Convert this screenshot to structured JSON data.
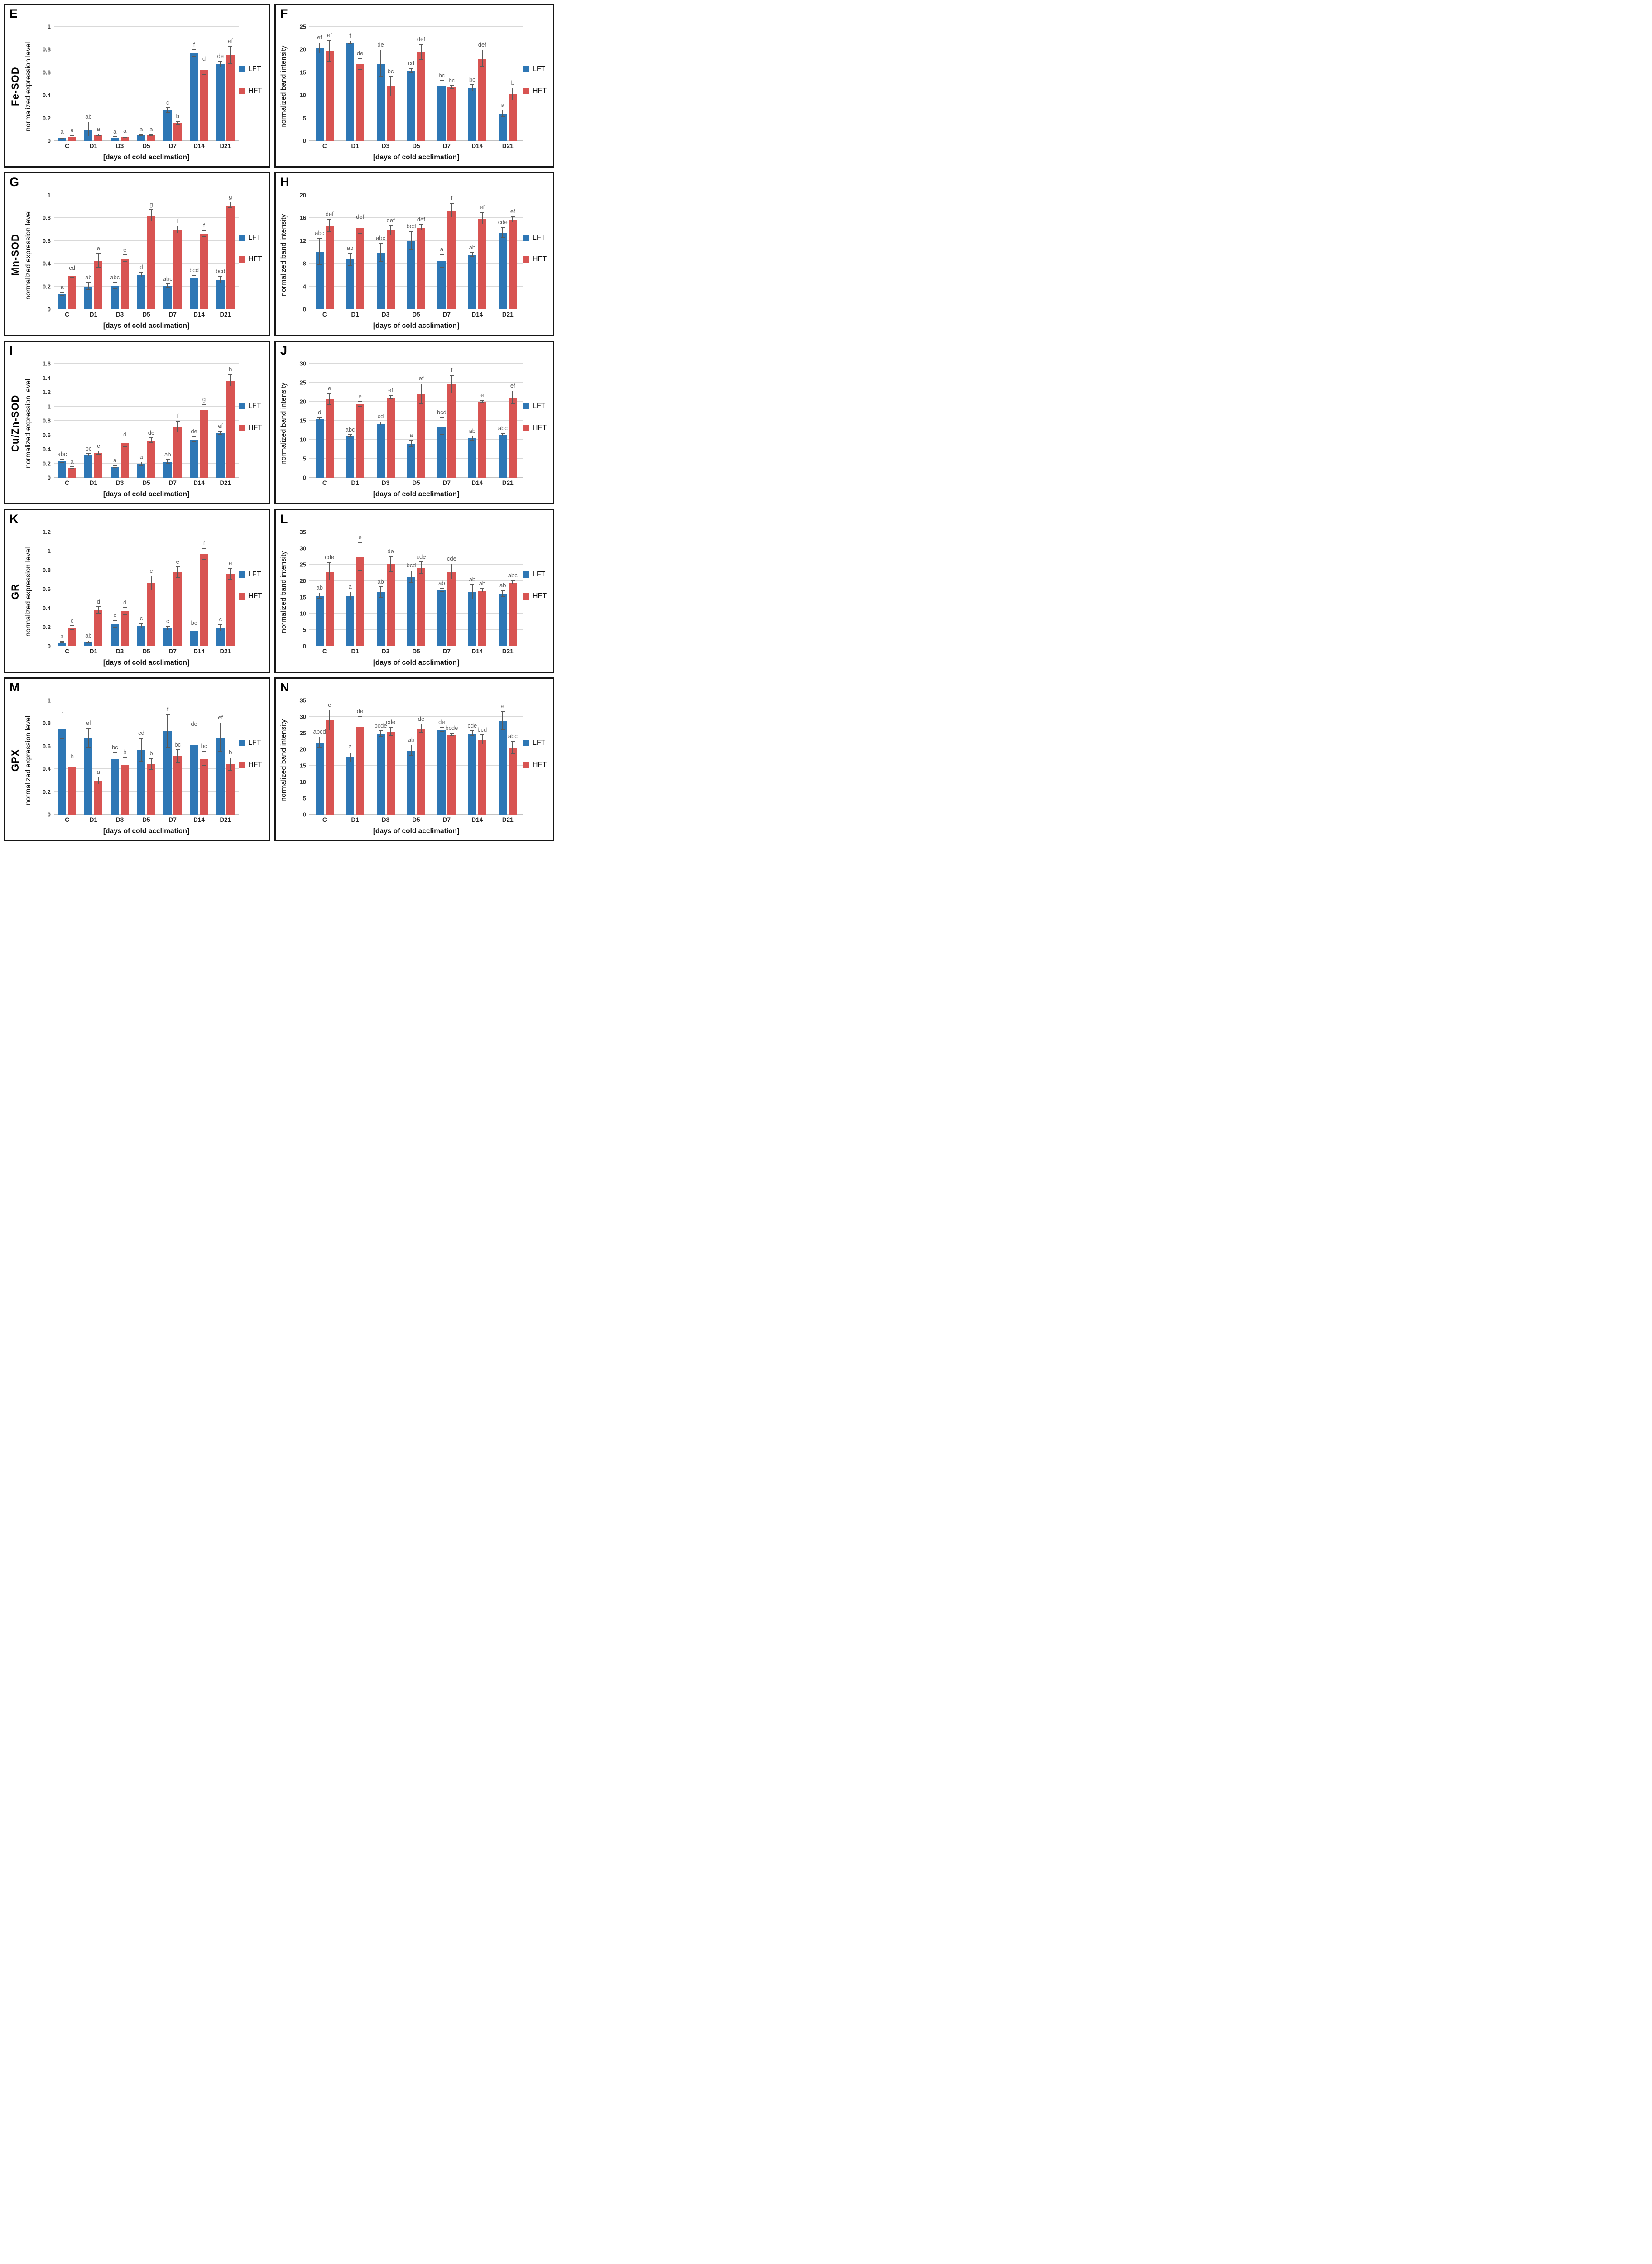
{
  "figure": {
    "layout": "5 rows x 2 columns of bar chart panels",
    "legend": {
      "series1": "LFT",
      "series2": "HFT"
    }
  },
  "colors": {
    "lft_blue": "#2e77b5",
    "hft_red": "#d85452",
    "gridline": "#d9d9d9",
    "letter_gray": "#595959",
    "panel_border": "#151515"
  },
  "chart_data": [
    {
      "type": "bar",
      "letter": "E",
      "gene": "Fe-SOD",
      "ylabel": "normalized expression level",
      "xlabel": "[days of cold acclimation]",
      "categories": [
        "C",
        "D1",
        "D3",
        "D5",
        "D7",
        "D14",
        "D21"
      ],
      "ylim": [
        0,
        1
      ],
      "yticks": [
        "0",
        "0.2",
        "0.4",
        "0.6",
        "0.8",
        "1"
      ],
      "grid": true,
      "legend_position": "right",
      "series": [
        {
          "name": "LFT",
          "color_key": "lft_blue",
          "values": [
            0.025,
            0.1,
            0.028,
            0.047,
            0.265,
            0.765,
            0.67
          ],
          "errors": [
            0.005,
            0.062,
            0.005,
            0.004,
            0.022,
            0.03,
            0.025
          ],
          "letters": [
            "a",
            "ab",
            "a",
            "a",
            "c",
            "f",
            "de"
          ]
        },
        {
          "name": "HFT",
          "color_key": "hft_red",
          "values": [
            0.036,
            0.05,
            0.033,
            0.047,
            0.155,
            0.625,
            0.75
          ],
          "errors": [
            0.006,
            0.006,
            0.006,
            0.005,
            0.012,
            0.045,
            0.075
          ],
          "letters": [
            "a",
            "a",
            "a",
            "a",
            "b",
            "d",
            "ef"
          ]
        }
      ]
    },
    {
      "type": "bar",
      "letter": "F",
      "gene": null,
      "ylabel": "normalized band intensity",
      "xlabel": "[days of cold acclimation]",
      "categories": [
        "C",
        "D1",
        "D3",
        "D5",
        "D7",
        "D14",
        "D21"
      ],
      "ylim": [
        0,
        25
      ],
      "yticks": [
        "0",
        "5",
        "10",
        "15",
        "20",
        "25"
      ],
      "grid": true,
      "legend_position": "right",
      "series": [
        {
          "name": "LFT",
          "color_key": "lft_blue",
          "values": [
            20.3,
            21.5,
            16.9,
            15.3,
            12.0,
            11.5,
            5.9
          ],
          "errors": [
            1.1,
            0.3,
            2.9,
            0.5,
            1.1,
            0.7,
            0.7
          ],
          "letters": [
            "ef",
            "f",
            "de",
            "cd",
            "bc",
            "bc",
            "a"
          ]
        },
        {
          "name": "HFT",
          "color_key": "hft_red",
          "values": [
            19.6,
            16.8,
            11.9,
            19.4,
            11.7,
            18.0,
            10.2
          ],
          "errors": [
            2.3,
            1.2,
            2.1,
            1.6,
            0.3,
            1.8,
            1.3
          ],
          "letters": [
            "ef",
            "de",
            "bc",
            "def",
            "bc",
            "def",
            "b"
          ]
        }
      ]
    },
    {
      "type": "bar",
      "letter": "G",
      "gene": "Mn-SOD",
      "ylabel": "normalized expression level",
      "xlabel": "[days of cold acclimation]",
      "categories": [
        "C",
        "D1",
        "D3",
        "D5",
        "D7",
        "D14",
        "D21"
      ],
      "ylim": [
        0,
        1
      ],
      "yticks": [
        "0",
        "0.2",
        "0.4",
        "0.6",
        "0.8",
        "1"
      ],
      "grid": true,
      "legend_position": "right",
      "series": [
        {
          "name": "LFT",
          "color_key": "lft_blue",
          "values": [
            0.13,
            0.2,
            0.205,
            0.3,
            0.205,
            0.27,
            0.255
          ],
          "errors": [
            0.015,
            0.03,
            0.025,
            0.02,
            0.015,
            0.025,
            0.03
          ],
          "letters": [
            "a",
            "ab",
            "abc",
            "d",
            "abc",
            "bcd",
            "bcd"
          ]
        },
        {
          "name": "HFT",
          "color_key": "hft_red",
          "values": [
            0.295,
            0.425,
            0.445,
            0.82,
            0.695,
            0.66,
            0.91
          ],
          "errors": [
            0.02,
            0.06,
            0.028,
            0.05,
            0.03,
            0.025,
            0.025
          ],
          "letters": [
            "cd",
            "e",
            "e",
            "g",
            "f",
            "f",
            "g"
          ]
        }
      ]
    },
    {
      "type": "bar",
      "letter": "H",
      "gene": null,
      "ylabel": "normalized band intensity",
      "xlabel": "[days of cold acclimation]",
      "categories": [
        "C",
        "D1",
        "D3",
        "D5",
        "D7",
        "D14",
        "D21"
      ],
      "ylim": [
        0,
        20
      ],
      "yticks": [
        "0",
        "4",
        "8",
        "12",
        "16",
        "20"
      ],
      "grid": true,
      "legend_position": "right",
      "series": [
        {
          "name": "LFT",
          "color_key": "lft_blue",
          "values": [
            10.1,
            8.7,
            9.9,
            12.0,
            8.4,
            9.5,
            13.4
          ],
          "errors": [
            2.3,
            1.1,
            1.6,
            1.6,
            1.1,
            0.35,
            0.9
          ],
          "letters": [
            "abc",
            "ab",
            "abc",
            "bcd",
            "a",
            "ab",
            "cde"
          ]
        },
        {
          "name": "HFT",
          "color_key": "hft_red",
          "values": [
            14.6,
            14.2,
            13.8,
            14.3,
            17.3,
            15.9,
            15.7
          ],
          "errors": [
            1.1,
            1.0,
            0.8,
            0.5,
            1.2,
            1.0,
            0.5
          ],
          "letters": [
            "def",
            "def",
            "def",
            "def",
            "f",
            "ef",
            "ef"
          ]
        }
      ]
    },
    {
      "type": "bar",
      "letter": "I",
      "gene": "Cu/Zn-SOD",
      "ylabel": "normalized expression level",
      "xlabel": "[days of cold acclimation]",
      "categories": [
        "C",
        "D1",
        "D3",
        "D5",
        "D7",
        "D14",
        "D21"
      ],
      "ylim": [
        0,
        1.6
      ],
      "yticks": [
        "0",
        "0.2",
        "0.4",
        "0.6",
        "0.8",
        "1",
        "1.2",
        "1.4",
        "1.6"
      ],
      "grid": true,
      "legend_position": "right",
      "series": [
        {
          "name": "LFT",
          "color_key": "lft_blue",
          "values": [
            0.23,
            0.315,
            0.15,
            0.19,
            0.22,
            0.535,
            0.625
          ],
          "errors": [
            0.025,
            0.015,
            0.015,
            0.025,
            0.03,
            0.035,
            0.025
          ],
          "letters": [
            "abc",
            "bc",
            "a",
            "a",
            "ab",
            "de",
            "ef"
          ]
        },
        {
          "name": "HFT",
          "color_key": "hft_red",
          "values": [
            0.135,
            0.345,
            0.48,
            0.52,
            0.715,
            0.95,
            1.36
          ],
          "errors": [
            0.012,
            0.025,
            0.045,
            0.035,
            0.075,
            0.075,
            0.08
          ],
          "letters": [
            "a",
            "c",
            "d",
            "de",
            "f",
            "g",
            "h"
          ]
        }
      ]
    },
    {
      "type": "bar",
      "letter": "J",
      "gene": null,
      "ylabel": "normalized band intensity",
      "xlabel": "[days of cold acclimation]",
      "categories": [
        "C",
        "D1",
        "D3",
        "D5",
        "D7",
        "D14",
        "D21"
      ],
      "ylim": [
        0,
        30
      ],
      "yticks": [
        "0",
        "5",
        "10",
        "15",
        "20",
        "25",
        "30"
      ],
      "grid": true,
      "legend_position": "right",
      "series": [
        {
          "name": "LFT",
          "color_key": "lft_blue",
          "values": [
            15.4,
            11.0,
            14.2,
            8.9,
            13.5,
            10.3,
            11.2
          ],
          "errors": [
            0.3,
            0.25,
            0.4,
            0.9,
            2.2,
            0.5,
            0.4
          ],
          "letters": [
            "d",
            "abc",
            "cd",
            "a",
            "bcd",
            "ab",
            "abc"
          ]
        },
        {
          "name": "HFT",
          "color_key": "hft_red",
          "values": [
            20.6,
            19.3,
            21.1,
            22.0,
            24.5,
            20.0,
            21.0
          ],
          "errors": [
            1.4,
            0.6,
            0.5,
            2.6,
            2.3,
            0.25,
            1.7
          ],
          "letters": [
            "e",
            "e",
            "ef",
            "ef",
            "f",
            "e",
            "ef"
          ]
        }
      ]
    },
    {
      "type": "bar",
      "letter": "K",
      "gene": "GR",
      "ylabel": "normalized expression level",
      "xlabel": "[days of cold acclimation]",
      "categories": [
        "C",
        "D1",
        "D3",
        "D5",
        "D7",
        "D14",
        "D21"
      ],
      "ylim": [
        0,
        1.2
      ],
      "yticks": [
        "0",
        "0.2",
        "0.4",
        "0.6",
        "0.8",
        "1",
        "1.2"
      ],
      "grid": true,
      "legend_position": "right",
      "series": [
        {
          "name": "LFT",
          "color_key": "lft_blue",
          "values": [
            0.04,
            0.045,
            0.23,
            0.21,
            0.185,
            0.16,
            0.19
          ],
          "errors": [
            0.005,
            0.007,
            0.035,
            0.025,
            0.02,
            0.025,
            0.035
          ],
          "letters": [
            "a",
            "ab",
            "c",
            "c",
            "c",
            "bc",
            "c"
          ]
        },
        {
          "name": "HFT",
          "color_key": "hft_red",
          "values": [
            0.19,
            0.375,
            0.365,
            0.66,
            0.775,
            0.965,
            0.755
          ],
          "errors": [
            0.02,
            0.035,
            0.035,
            0.075,
            0.055,
            0.06,
            0.06
          ],
          "letters": [
            "c",
            "d",
            "d",
            "e",
            "e",
            "f",
            "e"
          ]
        }
      ]
    },
    {
      "type": "bar",
      "letter": "L",
      "gene": null,
      "ylabel": "normalized band intensity",
      "xlabel": "[days of cold acclimation]",
      "categories": [
        "C",
        "D1",
        "D3",
        "D5",
        "D7",
        "D14",
        "D21"
      ],
      "ylim": [
        0,
        35
      ],
      "yticks": [
        "0",
        "5",
        "10",
        "15",
        "20",
        "25",
        "30",
        "35"
      ],
      "grid": true,
      "legend_position": "right",
      "series": [
        {
          "name": "LFT",
          "color_key": "lft_blue",
          "values": [
            15.4,
            15.3,
            16.5,
            21.2,
            17.2,
            16.6,
            16.1
          ],
          "errors": [
            0.8,
            1.2,
            1.6,
            1.8,
            0.5,
            2.2,
            0.9
          ],
          "letters": [
            "ab",
            "a",
            "ab",
            "bcd",
            "ab",
            "ab",
            "ab"
          ]
        },
        {
          "name": "HFT",
          "color_key": "hft_red",
          "values": [
            22.8,
            27.4,
            25.1,
            23.9,
            22.8,
            17.0,
            19.5
          ],
          "errors": [
            2.7,
            4.2,
            2.3,
            1.8,
            2.3,
            0.5,
            0.5
          ],
          "letters": [
            "cde",
            "e",
            "de",
            "cde",
            "cde",
            "ab",
            "abc"
          ]
        }
      ]
    },
    {
      "type": "bar",
      "letter": "M",
      "gene": "GPX",
      "ylabel": "normalized expression level",
      "xlabel": "[days of cold acclimation]",
      "categories": [
        "C",
        "D1",
        "D3",
        "D5",
        "D7",
        "D14",
        "D21"
      ],
      "ylim": [
        0,
        1
      ],
      "yticks": [
        "0",
        "0.2",
        "0.4",
        "0.6",
        "0.8",
        "1"
      ],
      "grid": true,
      "legend_position": "right",
      "series": [
        {
          "name": "LFT",
          "color_key": "lft_blue",
          "values": [
            0.745,
            0.67,
            0.49,
            0.565,
            0.73,
            0.61,
            0.675
          ],
          "errors": [
            0.08,
            0.085,
            0.05,
            0.1,
            0.145,
            0.135,
            0.125
          ],
          "letters": [
            "f",
            "ef",
            "bc",
            "cd",
            "f",
            "de",
            "ef"
          ]
        },
        {
          "name": "HFT",
          "color_key": "hft_red",
          "values": [
            0.415,
            0.295,
            0.435,
            0.44,
            0.51,
            0.49,
            0.44
          ],
          "errors": [
            0.045,
            0.03,
            0.065,
            0.05,
            0.055,
            0.06,
            0.055
          ],
          "letters": [
            "b",
            "a",
            "b",
            "b",
            "bc",
            "bc",
            "b"
          ]
        }
      ]
    },
    {
      "type": "bar",
      "letter": "N",
      "gene": null,
      "ylabel": "normalized band intensity",
      "xlabel": "[days of cold acclimation]",
      "categories": [
        "C",
        "D1",
        "D3",
        "D5",
        "D7",
        "D14",
        "D21"
      ],
      "ylim": [
        0,
        35
      ],
      "yticks": [
        "0",
        "5",
        "10",
        "15",
        "20",
        "25",
        "30",
        "35"
      ],
      "grid": true,
      "legend_position": "right",
      "series": [
        {
          "name": "LFT",
          "color_key": "lft_blue",
          "values": [
            22.1,
            17.6,
            24.7,
            19.6,
            26.0,
            24.9,
            28.7
          ],
          "errors": [
            1.6,
            1.5,
            0.9,
            1.6,
            0.7,
            0.7,
            2.8
          ],
          "letters": [
            "abcd",
            "a",
            "bcde",
            "ab",
            "de",
            "cde",
            "e"
          ]
        },
        {
          "name": "HFT",
          "color_key": "hft_red",
          "values": [
            28.9,
            27.0,
            25.4,
            26.3,
            24.5,
            22.9,
            20.5
          ],
          "errors": [
            3.1,
            3.0,
            1.2,
            1.3,
            0.3,
            1.4,
            1.9
          ],
          "letters": [
            "e",
            "de",
            "cde",
            "de",
            "bcde",
            "bcd",
            "abc"
          ]
        }
      ]
    }
  ]
}
